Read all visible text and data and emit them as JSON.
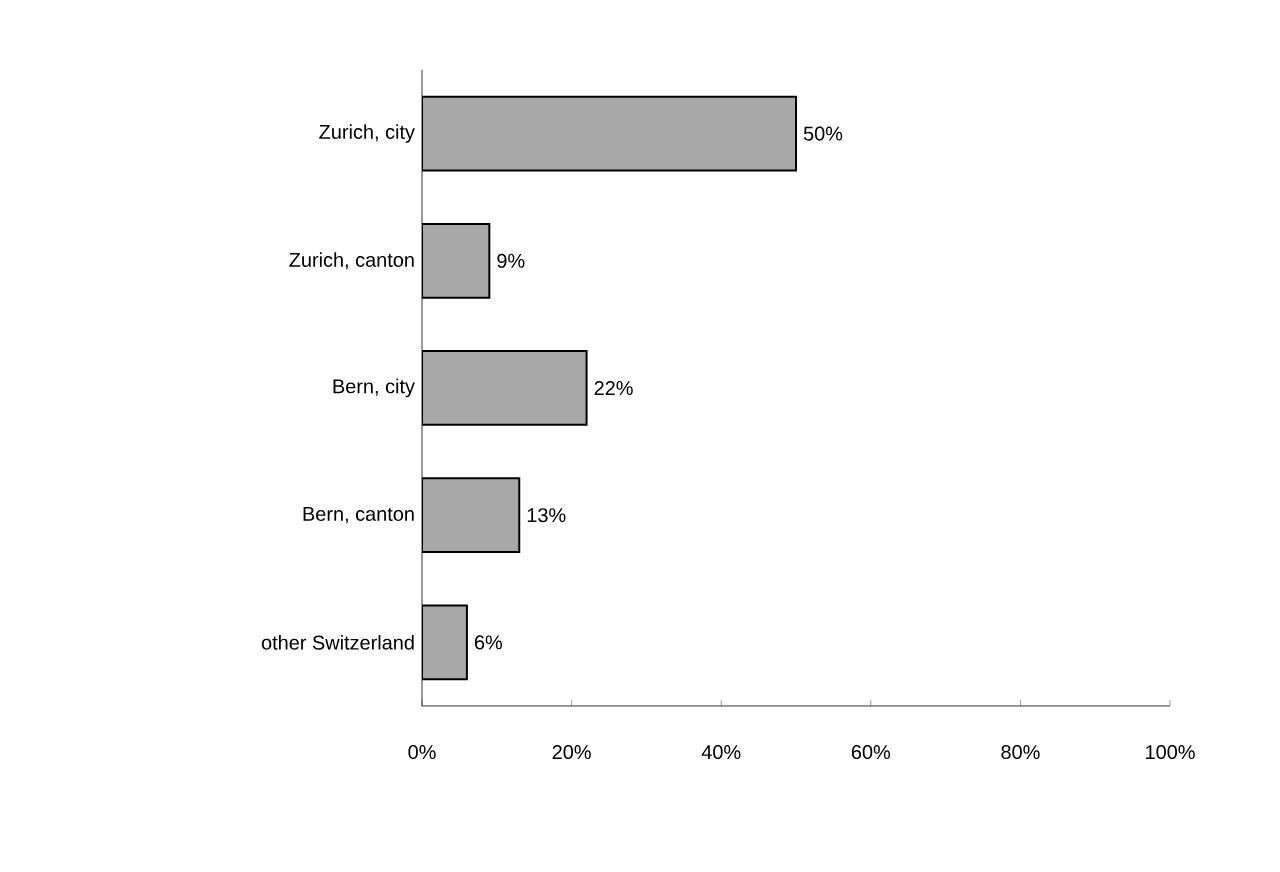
{
  "chart_data": {
    "type": "bar",
    "orientation": "horizontal",
    "categories": [
      "Zurich, city",
      "Zurich, canton",
      "Bern, city",
      "Bern, canton",
      "other Switzerland"
    ],
    "values": [
      50,
      9,
      22,
      13,
      6
    ],
    "value_labels": [
      "50%",
      "9%",
      "22%",
      "13%",
      "6%"
    ],
    "color": "#a8a8a8",
    "xlim": [
      0,
      100
    ],
    "xticks": [
      {
        "value": 0,
        "label": "0%"
      },
      {
        "value": 20,
        "label": "20%"
      },
      {
        "value": 40,
        "label": "40%"
      },
      {
        "value": 60,
        "label": "60%"
      },
      {
        "value": 80,
        "label": "80%"
      },
      {
        "value": 100,
        "label": "100%"
      }
    ]
  }
}
